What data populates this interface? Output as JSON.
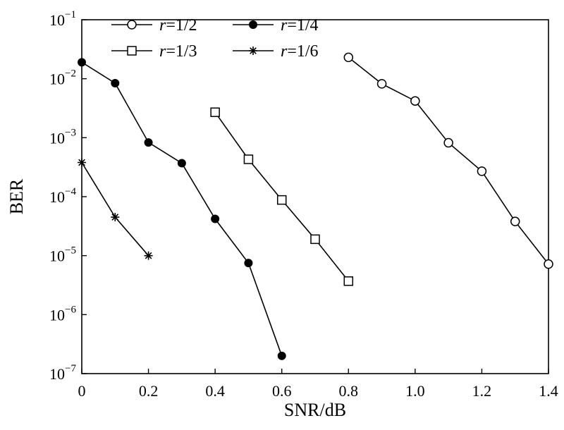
{
  "chart_data": {
    "type": "line",
    "title": "",
    "xlabel": "SNR/dB",
    "ylabel": "BER",
    "xlim": [
      0,
      1.4
    ],
    "ylim": [
      1e-07,
      0.1
    ],
    "yscale": "log",
    "grid": false,
    "legend_position": "top",
    "x_ticks": [
      "0",
      "0.2",
      "0.4",
      "0.6",
      "0.8",
      "1.0",
      "1.2",
      "1.4"
    ],
    "y_ticks": [
      {
        "base": "10",
        "exp": "−1"
      },
      {
        "base": "10",
        "exp": "−2"
      },
      {
        "base": "10",
        "exp": "−3"
      },
      {
        "base": "10",
        "exp": "−4"
      },
      {
        "base": "10",
        "exp": "−5"
      },
      {
        "base": "10",
        "exp": "−6"
      },
      {
        "base": "10",
        "exp": "−7"
      }
    ],
    "series": [
      {
        "name": "r=1/2",
        "legend_var": "r",
        "legend_rest": "=1/2",
        "marker": "open-circle",
        "x": [
          0.8,
          0.9,
          1.0,
          1.1,
          1.2,
          1.3,
          1.4
        ],
        "y": [
          0.023,
          0.0082,
          0.0042,
          0.00082,
          0.00027,
          3.8e-05,
          7.2e-06
        ]
      },
      {
        "name": "r=1/3",
        "legend_var": "r",
        "legend_rest": "=1/3",
        "marker": "open-square",
        "x": [
          0.4,
          0.5,
          0.6,
          0.7,
          0.8
        ],
        "y": [
          0.0027,
          0.00043,
          8.8e-05,
          1.9e-05,
          3.7e-06
        ]
      },
      {
        "name": "r=1/4",
        "legend_var": "r",
        "legend_rest": "=1/4",
        "marker": "filled-circle",
        "x": [
          0.0,
          0.1,
          0.2,
          0.3,
          0.4,
          0.5,
          0.6
        ],
        "y": [
          0.019,
          0.0084,
          0.00083,
          0.00037,
          4.2e-05,
          7.5e-06,
          2e-07
        ]
      },
      {
        "name": "r=1/6",
        "legend_var": "r",
        "legend_rest": "=1/6",
        "marker": "asterisk",
        "x": [
          0.0,
          0.1,
          0.2
        ],
        "y": [
          0.00038,
          4.5e-05,
          1e-05
        ]
      }
    ]
  }
}
